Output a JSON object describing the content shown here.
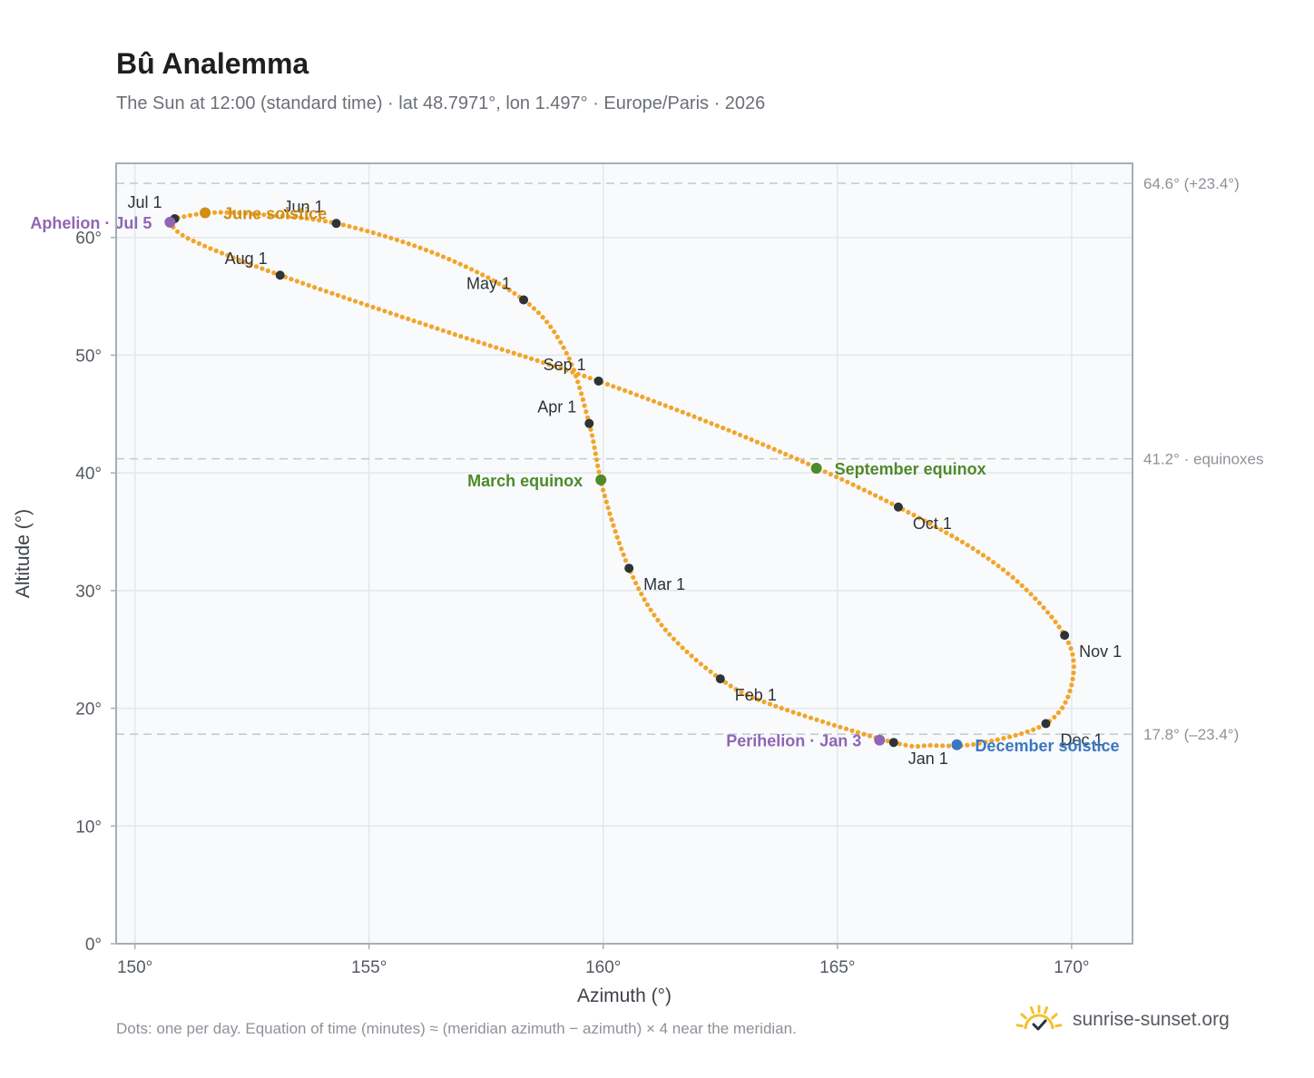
{
  "header": {
    "title": "Bû Analemma",
    "subtitle": "The Sun at 12:00 (standard time) · lat 48.7971°, lon 1.497° · Europe/Paris · 2026"
  },
  "footer": {
    "note": "Dots: one per day. Equation of time (minutes) ≈ (meridian azimuth − azimuth) × 4 near the meridian.",
    "brand": "sunrise-sunset.org",
    "brand_icon": "sun-icon"
  },
  "colors": {
    "path": "#f2a52a",
    "month_marker": "#2e3338",
    "equinox": "#4e8a2b",
    "june_solstice": "#d18d14",
    "december_solstice": "#3a78c0",
    "apsis": "#8f66b4",
    "plot_bg": "#f8fafc",
    "frame": "#a6aeb9",
    "grid": "#e4e7eb",
    "ref_line": "#c3c8ce",
    "brand_sun": "#f2c12e"
  },
  "chart_data": {
    "type": "scatter",
    "xlabel": "Azimuth (°)",
    "ylabel": "Altitude (°)",
    "xlim": [
      149.6,
      171.3
    ],
    "ylim": [
      0,
      66.3
    ],
    "x_ticks": [
      150,
      155,
      160,
      165,
      170
    ],
    "y_ticks": [
      0,
      10,
      20,
      30,
      40,
      50,
      60
    ],
    "x_tick_labels": [
      "150°",
      "155°",
      "160°",
      "165°",
      "170°"
    ],
    "y_tick_labels": [
      "0°",
      "10°",
      "20°",
      "30°",
      "40°",
      "50°",
      "60°"
    ],
    "grid": true,
    "reference_lines": [
      {
        "y": 64.6,
        "label": "64.6° (+23.4°)"
      },
      {
        "y": 41.2,
        "label": "41.2° · equinoxes"
      },
      {
        "y": 17.8,
        "label": "17.8° (–23.4°)"
      }
    ],
    "month_markers": [
      {
        "label": "Jan 1",
        "x": 166.2,
        "y": 17.1,
        "anchor": "below-right"
      },
      {
        "label": "Feb 1",
        "x": 162.5,
        "y": 22.5,
        "anchor": "below-right"
      },
      {
        "label": "Mar 1",
        "x": 160.55,
        "y": 31.9,
        "anchor": "below-right"
      },
      {
        "label": "Apr 1",
        "x": 159.7,
        "y": 44.2,
        "anchor": "above-left"
      },
      {
        "label": "May 1",
        "x": 158.3,
        "y": 54.7,
        "anchor": "above-left"
      },
      {
        "label": "Jun 1",
        "x": 154.3,
        "y": 61.2,
        "anchor": "above-left"
      },
      {
        "label": "Jul 1",
        "x": 150.85,
        "y": 61.6,
        "anchor": "above-left"
      },
      {
        "label": "Aug 1",
        "x": 153.1,
        "y": 56.8,
        "anchor": "above-left"
      },
      {
        "label": "Sep 1",
        "x": 159.9,
        "y": 47.8,
        "anchor": "above-left"
      },
      {
        "label": "Oct 1",
        "x": 166.3,
        "y": 37.1,
        "anchor": "below-right"
      },
      {
        "label": "Nov 1",
        "x": 169.85,
        "y": 26.2,
        "anchor": "below-right"
      },
      {
        "label": "Dec 1",
        "x": 169.45,
        "y": 18.7,
        "anchor": "below-right"
      }
    ],
    "special_points": [
      {
        "label": "Perihelion · Jan 3",
        "x": 165.9,
        "y": 17.3,
        "color_key": "apsis",
        "side": "left"
      },
      {
        "label": "March equinox",
        "x": 159.95,
        "y": 39.4,
        "color_key": "equinox",
        "side": "left"
      },
      {
        "label": "June solstice",
        "x": 151.5,
        "y": 62.1,
        "color_key": "june_solstice",
        "side": "right"
      },
      {
        "label": "Aphelion · Jul 5",
        "x": 150.75,
        "y": 61.3,
        "color_key": "apsis",
        "side": "left"
      },
      {
        "label": "September equinox",
        "x": 164.55,
        "y": 40.4,
        "color_key": "equinox",
        "side": "right"
      },
      {
        "label": "December solstice",
        "x": 167.55,
        "y": 16.9,
        "color_key": "december_solstice",
        "side": "right"
      }
    ],
    "path_knots": [
      [
        166.2,
        17.1
      ],
      [
        163.6,
        20.3
      ],
      [
        162.5,
        22.5
      ],
      [
        161.3,
        26.8
      ],
      [
        160.55,
        31.9
      ],
      [
        160.0,
        38.5
      ],
      [
        159.7,
        44.2
      ],
      [
        159.2,
        50.3
      ],
      [
        158.3,
        54.7
      ],
      [
        156.5,
        58.5
      ],
      [
        154.3,
        61.2
      ],
      [
        152.5,
        62.0
      ],
      [
        151.6,
        62.1
      ],
      [
        150.85,
        61.6
      ],
      [
        150.75,
        61.3
      ],
      [
        151.2,
        59.8
      ],
      [
        153.1,
        56.8
      ],
      [
        156.5,
        52.2
      ],
      [
        159.9,
        47.8
      ],
      [
        163.3,
        42.6
      ],
      [
        166.3,
        37.1
      ],
      [
        168.5,
        31.9
      ],
      [
        169.85,
        26.2
      ],
      [
        170.0,
        22.0
      ],
      [
        169.45,
        18.7
      ],
      [
        168.0,
        17.0
      ],
      [
        167.0,
        16.85
      ],
      [
        166.2,
        17.1
      ]
    ]
  }
}
